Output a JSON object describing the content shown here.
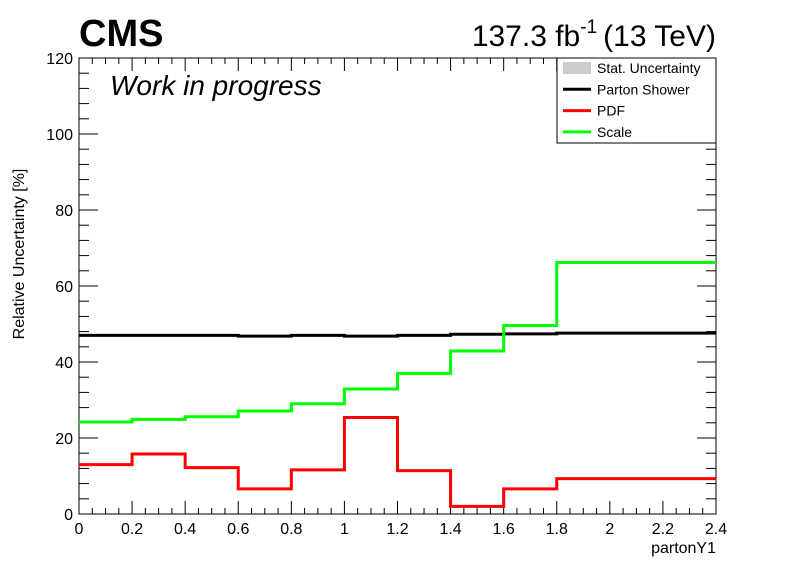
{
  "header": {
    "experiment": "CMS",
    "lumi_value": "137.3 fb",
    "lumi_exp": "-1",
    "energy": "(13 TeV)",
    "status": "Work in progress"
  },
  "colors": {
    "parton_shower": "#000000",
    "pdf": "#ff0000",
    "scale": "#00ff00",
    "stat": "#cccccc"
  },
  "chart_data": {
    "type": "line",
    "xlabel": "partonY1",
    "ylabel": "Relative Uncertainty [%]",
    "xlim": [
      0,
      2.4
    ],
    "ylim": [
      0,
      120
    ],
    "x_ticks": [
      "0",
      "0.2",
      "0.4",
      "0.6",
      "0.8",
      "1",
      "1.2",
      "1.4",
      "1.6",
      "1.8",
      "2",
      "2.2",
      "2.4"
    ],
    "y_ticks": [
      "0",
      "20",
      "40",
      "60",
      "80",
      "100",
      "120"
    ],
    "bin_edges": [
      0,
      0.2,
      0.4,
      0.6,
      0.8,
      1.0,
      1.2,
      1.4,
      1.6,
      1.8,
      2.4
    ],
    "legend": {
      "position": "top-right",
      "entries": [
        "Stat. Uncertainty",
        "Parton Shower",
        "PDF",
        "Scale"
      ]
    },
    "series": [
      {
        "name": "Parton Shower",
        "color": "#000000",
        "values": [
          47.0,
          47.0,
          47.0,
          46.8,
          47.0,
          46.8,
          47.0,
          47.3,
          47.4,
          47.6
        ]
      },
      {
        "name": "PDF",
        "color": "#ff0000",
        "values": [
          13.0,
          15.8,
          12.2,
          6.6,
          11.6,
          25.4,
          11.4,
          2.0,
          6.6,
          9.3
        ]
      },
      {
        "name": "Scale",
        "color": "#00ff00",
        "values": [
          24.2,
          24.9,
          25.6,
          27.1,
          29.0,
          32.9,
          37.0,
          42.9,
          49.6,
          66.2
        ]
      }
    ]
  }
}
